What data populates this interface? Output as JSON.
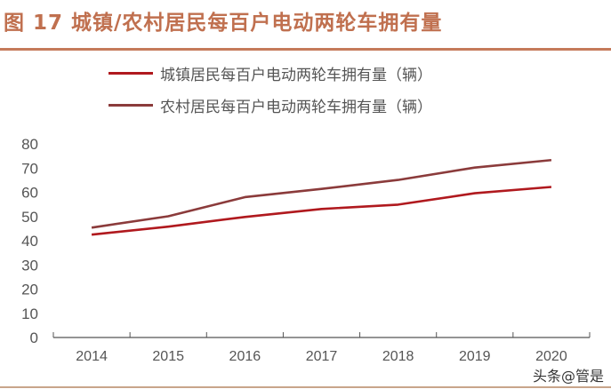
{
  "title": "图 17  城镇/农村居民每百户电动两轮车拥有量",
  "watermark": "头条@管是",
  "chart_data": {
    "type": "line",
    "title": "图 17  城镇/农村居民每百户电动两轮车拥有量",
    "categories": [
      "2014",
      "2015",
      "2016",
      "2017",
      "2018",
      "2019",
      "2020"
    ],
    "ylim": [
      0,
      80
    ],
    "yticks": [
      "0",
      "10",
      "20",
      "30",
      "40",
      "50",
      "60",
      "70",
      "80"
    ],
    "grid": false,
    "legend": "top",
    "series": [
      {
        "name": "城镇居民每百户电动两轮车拥有量（辆）",
        "color": "#b0191e",
        "values": [
          42.5,
          45.8,
          49.8,
          53.1,
          54.9,
          59.6,
          62.2
        ]
      },
      {
        "name": "农村居民每百户电动两轮车拥有量（辆）",
        "color": "#8b3b3b",
        "values": [
          45.4,
          50.1,
          58.0,
          61.4,
          65.1,
          70.2,
          73.3
        ]
      }
    ]
  }
}
